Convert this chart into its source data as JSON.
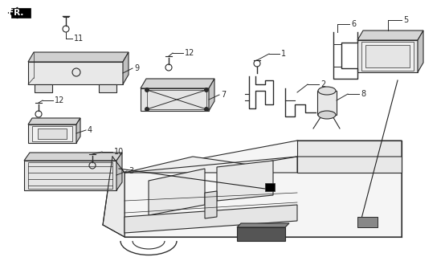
{
  "bg_color": "#ffffff",
  "line_color": "#2a2a2a",
  "fig_width": 5.54,
  "fig_height": 3.2,
  "dpi": 100
}
